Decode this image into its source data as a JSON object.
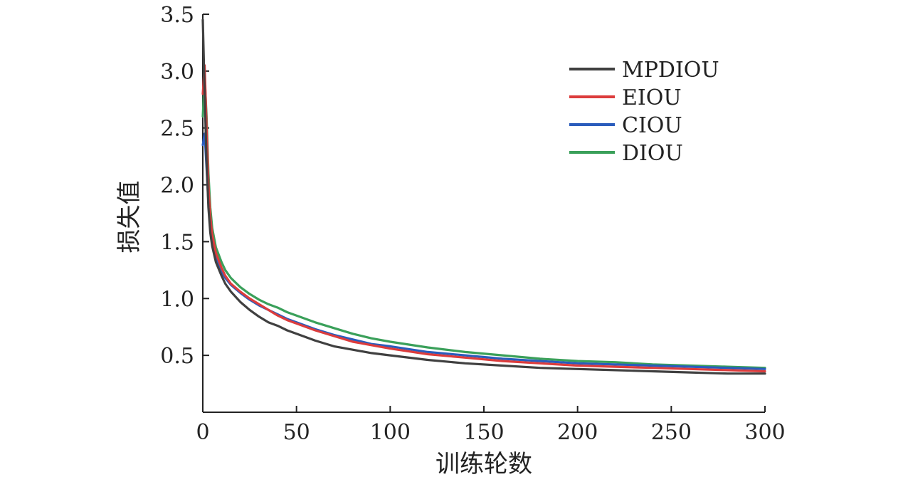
{
  "chart_data": {
    "type": "line",
    "title": "",
    "xlabel": "训练轮数",
    "ylabel": "损失值",
    "xlim": [
      0,
      300
    ],
    "ylim": [
      0,
      3.5
    ],
    "x_ticks": [
      "0",
      "50",
      "100",
      "150",
      "200",
      "250",
      "300"
    ],
    "y_ticks": [
      "0.5",
      "1.0",
      "1.5",
      "2.0",
      "2.5",
      "3.0",
      "3.5"
    ],
    "legend_position": "top-right",
    "grid": false,
    "x": [
      0,
      1,
      2,
      3,
      4,
      5,
      7,
      10,
      12,
      15,
      20,
      25,
      30,
      35,
      40,
      45,
      50,
      60,
      70,
      80,
      90,
      100,
      120,
      140,
      160,
      180,
      200,
      220,
      240,
      260,
      280,
      300
    ],
    "series": [
      {
        "name": "MPDIOU",
        "color": "#404040",
        "values": [
          3.45,
          2.8,
          2.2,
          1.8,
          1.58,
          1.46,
          1.32,
          1.2,
          1.13,
          1.06,
          0.97,
          0.9,
          0.84,
          0.79,
          0.76,
          0.72,
          0.69,
          0.63,
          0.58,
          0.55,
          0.52,
          0.5,
          0.46,
          0.43,
          0.41,
          0.39,
          0.38,
          0.37,
          0.36,
          0.35,
          0.34,
          0.34
        ]
      },
      {
        "name": "EIOU",
        "color": "#dc3c3c",
        "values": [
          2.8,
          3.05,
          2.5,
          2.0,
          1.72,
          1.56,
          1.4,
          1.27,
          1.2,
          1.13,
          1.06,
          1.0,
          0.95,
          0.9,
          0.85,
          0.81,
          0.78,
          0.72,
          0.67,
          0.62,
          0.59,
          0.56,
          0.51,
          0.48,
          0.45,
          0.43,
          0.41,
          0.4,
          0.39,
          0.38,
          0.37,
          0.36
        ]
      },
      {
        "name": "CIOU",
        "color": "#2a5cbc",
        "values": [
          2.35,
          2.45,
          2.15,
          1.85,
          1.65,
          1.5,
          1.36,
          1.24,
          1.18,
          1.12,
          1.05,
          0.99,
          0.94,
          0.9,
          0.86,
          0.82,
          0.79,
          0.73,
          0.68,
          0.64,
          0.6,
          0.58,
          0.53,
          0.5,
          0.47,
          0.45,
          0.43,
          0.42,
          0.41,
          0.4,
          0.39,
          0.38
        ]
      },
      {
        "name": "DIOU",
        "color": "#3aa05a",
        "values": [
          2.6,
          2.95,
          2.6,
          2.1,
          1.8,
          1.62,
          1.45,
          1.32,
          1.25,
          1.18,
          1.1,
          1.04,
          0.99,
          0.95,
          0.92,
          0.88,
          0.85,
          0.79,
          0.74,
          0.69,
          0.65,
          0.62,
          0.57,
          0.53,
          0.5,
          0.47,
          0.45,
          0.44,
          0.42,
          0.41,
          0.4,
          0.39
        ]
      }
    ]
  }
}
